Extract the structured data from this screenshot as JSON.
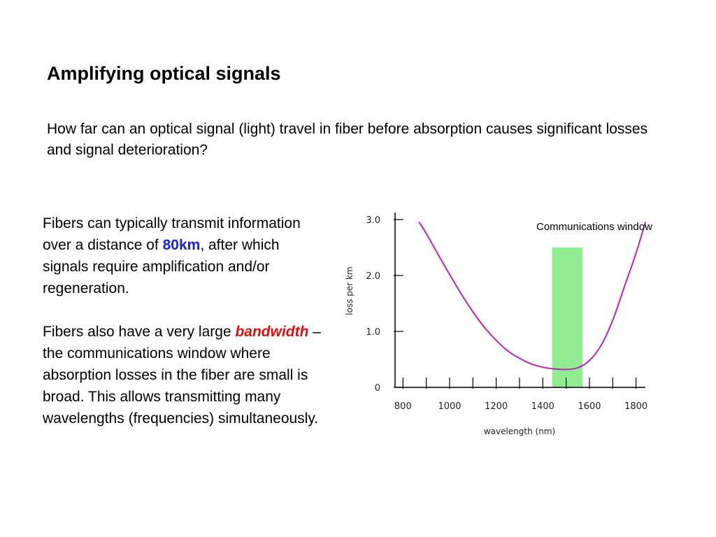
{
  "slide": {
    "title": "Amplifying optical signals",
    "intro": "How far can an optical signal (light) travel in fiber before absorption causes significant losses and signal deterioration?",
    "para1": {
      "before": "Fibers can typically transmit information over a distance of ",
      "highlight": "80km",
      "after": ", after which signals require amplification and/or regeneration."
    },
    "para2": {
      "before": "Fibers also have a very large ",
      "highlight": "bandwidth",
      "after": " – the communications window where absorption losses in the fiber are small is broad. This allows transmitting many wavelengths (frequencies) simultaneously."
    }
  },
  "colors": {
    "highlight_blue": "#1a22e0",
    "highlight_red": "#e01010",
    "curve": "#c020c0",
    "window": "#90ee90"
  },
  "chart_data": {
    "type": "line",
    "title": "",
    "xlabel": "wavelength (nm)",
    "ylabel": "loss per km",
    "xlim": [
      760,
      1840
    ],
    "ylim": [
      0,
      3.0
    ],
    "xticks": [
      800,
      1000,
      1200,
      1400,
      1600,
      1800
    ],
    "xtick_labels": [
      "800",
      "1000",
      "1200",
      "1400",
      "1600",
      "1800"
    ],
    "yticks": [
      0,
      1.0,
      2.0,
      3.0
    ],
    "ytick_labels": [
      "0",
      "1.0",
      "2.0",
      "3.0"
    ],
    "series": [
      {
        "x": [
          870,
          900,
          950,
          1000,
          1050,
          1100,
          1150,
          1200,
          1250,
          1300,
          1350,
          1400,
          1450,
          1500,
          1550,
          1600,
          1650,
          1700,
          1750,
          1800,
          1840
        ],
        "y": [
          2.95,
          2.75,
          2.38,
          2.02,
          1.67,
          1.35,
          1.07,
          0.84,
          0.65,
          0.52,
          0.42,
          0.36,
          0.33,
          0.32,
          0.35,
          0.48,
          0.75,
          1.2,
          1.8,
          2.4,
          2.95
        ]
      }
    ],
    "annotations": [
      {
        "label": "Communications window",
        "x_range": [
          1440,
          1570
        ],
        "y_range": [
          0,
          2.5
        ]
      }
    ],
    "grid": false
  }
}
